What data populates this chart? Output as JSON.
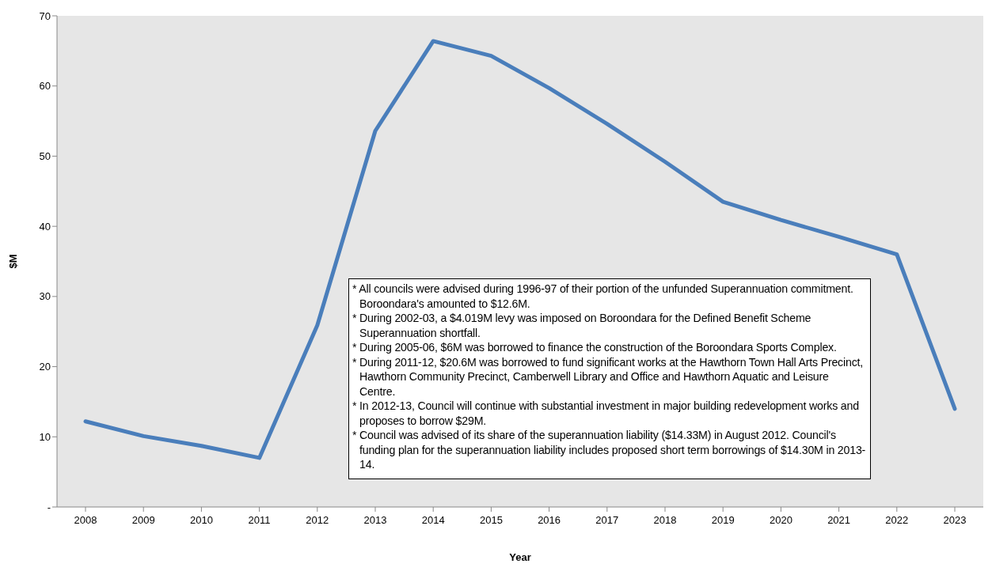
{
  "chart_data": {
    "type": "line",
    "xlabel": "Year",
    "ylabel": "$M",
    "categories": [
      "2008",
      "2009",
      "2010",
      "2011",
      "2012",
      "2013",
      "2014",
      "2015",
      "2016",
      "2017",
      "2018",
      "2019",
      "2020",
      "2021",
      "2022",
      "2023"
    ],
    "series": [
      {
        "color": "#4a7ebb",
        "values": [
          12.2,
          10.1,
          8.7,
          7.0,
          25.9,
          53.6,
          66.4,
          64.3,
          59.7,
          54.6,
          49.2,
          43.5,
          40.9,
          38.5,
          36.0,
          14.0
        ]
      }
    ],
    "ylim": [
      0,
      70
    ],
    "yticks": [
      {
        "value": 0,
        "label": "-"
      },
      10,
      20,
      30,
      40,
      50,
      60,
      70
    ],
    "grid": false,
    "legend": false,
    "marker": "none",
    "line_style": "solid",
    "annotations": [
      "* All councils were advised during 1996-97 of their portion of the unfunded Superannuation commitment. Boroondara's amounted to $12.6M.",
      "* During 2002-03, a $4.019M levy was imposed on Boroondara for the Defined Benefit Scheme Superannuation shortfall.",
      "* During 2005-06, $6M was borrowed to finance the construction of the Boroondara Sports Complex.",
      "* During 2011-12, $20.6M was borrowed to fund significant works at the Hawthorn Town Hall Arts Precinct, Hawthorn Community Precinct, Camberwell Library and Office and Hawthorn Aquatic and Leisure Centre.",
      "* In 2012-13, Council will continue with substantial investment in major building redevelopment works and proposes to borrow $29M.",
      "* Council was advised of its share of the superannuation liability ($14.33M) in August 2012. Council's funding plan for the superannuation liability includes proposed short term borrowings of $14.30M in 2013-14."
    ]
  }
}
